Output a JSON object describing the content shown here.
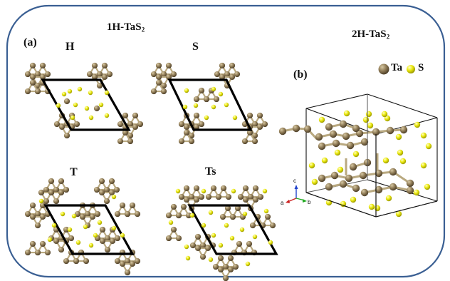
{
  "figure": {
    "title_1h": {
      "prefix": "1H-TaS",
      "sub": "2"
    },
    "title_2h": {
      "prefix": "2H-TaS",
      "sub": "2"
    },
    "label_a": "(a)",
    "label_b": "(b)",
    "panel_h": "H",
    "panel_s": "S",
    "panel_t": "T",
    "panel_ts": "Ts",
    "legend_ta": "Ta",
    "legend_s": "S",
    "axis_c": "c",
    "axis_a": "a",
    "axis_b": "b"
  },
  "colors": {
    "frame": "#3a5f93",
    "ta_atom": "#8e7a55",
    "s_atom": "#e6e200",
    "bond": "#b9a980",
    "cell": "#000000"
  }
}
